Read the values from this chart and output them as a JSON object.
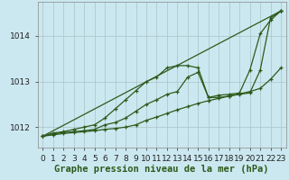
{
  "background_color": "#cbe8f0",
  "grid_color": "#b0c8cc",
  "line_color": "#2d5a1b",
  "xlabel": "Graphe pression niveau de la mer (hPa)",
  "xlabel_fontsize": 7.5,
  "tick_fontsize": 6.5,
  "xlim": [
    -0.5,
    23.5
  ],
  "ylim": [
    1011.55,
    1014.75
  ],
  "yticks": [
    1012,
    1013,
    1014
  ],
  "xticks": [
    0,
    1,
    2,
    3,
    4,
    5,
    6,
    7,
    8,
    9,
    10,
    11,
    12,
    13,
    14,
    15,
    16,
    17,
    18,
    19,
    20,
    21,
    22,
    23
  ],
  "series": [
    {
      "x": [
        0,
        1,
        2,
        3,
        4,
        5,
        6,
        7,
        8,
        9,
        10,
        11,
        12,
        13,
        14,
        15,
        16,
        17,
        18,
        19,
        20,
        21,
        22,
        23
      ],
      "y": [
        1011.8,
        1011.87,
        1011.9,
        1011.95,
        1012.0,
        1012.05,
        1012.2,
        1012.4,
        1012.6,
        1012.8,
        1013.0,
        1013.1,
        1013.3,
        1013.35,
        1013.35,
        1013.3,
        1012.65,
        1012.7,
        1012.72,
        1012.75,
        1013.25,
        1014.05,
        1014.35,
        1014.55
      ]
    },
    {
      "x": [
        0,
        1,
        2,
        3,
        4,
        5,
        6,
        7,
        8,
        9,
        10,
        11,
        12,
        13,
        14,
        15,
        16,
        17,
        18,
        19,
        20,
        21,
        22,
        23
      ],
      "y": [
        1011.8,
        1011.85,
        1011.88,
        1011.9,
        1011.92,
        1011.95,
        1012.05,
        1012.1,
        1012.2,
        1012.35,
        1012.5,
        1012.6,
        1012.72,
        1012.78,
        1013.1,
        1013.2,
        1012.65,
        1012.65,
        1012.68,
        1012.72,
        1012.75,
        1013.25,
        1014.4,
        1014.55
      ]
    },
    {
      "x": [
        0,
        23
      ],
      "y": [
        1011.8,
        1014.55
      ]
    },
    {
      "x": [
        0,
        1,
        2,
        3,
        4,
        5,
        6,
        7,
        8,
        9,
        10,
        11,
        12,
        13,
        14,
        15,
        16,
        17,
        18,
        19,
        20,
        21,
        22,
        23
      ],
      "y": [
        1011.8,
        1011.83,
        1011.86,
        1011.88,
        1011.9,
        1011.92,
        1011.95,
        1011.97,
        1012.0,
        1012.05,
        1012.15,
        1012.22,
        1012.3,
        1012.38,
        1012.45,
        1012.52,
        1012.58,
        1012.63,
        1012.68,
        1012.73,
        1012.78,
        1012.85,
        1013.05,
        1013.3
      ]
    }
  ]
}
